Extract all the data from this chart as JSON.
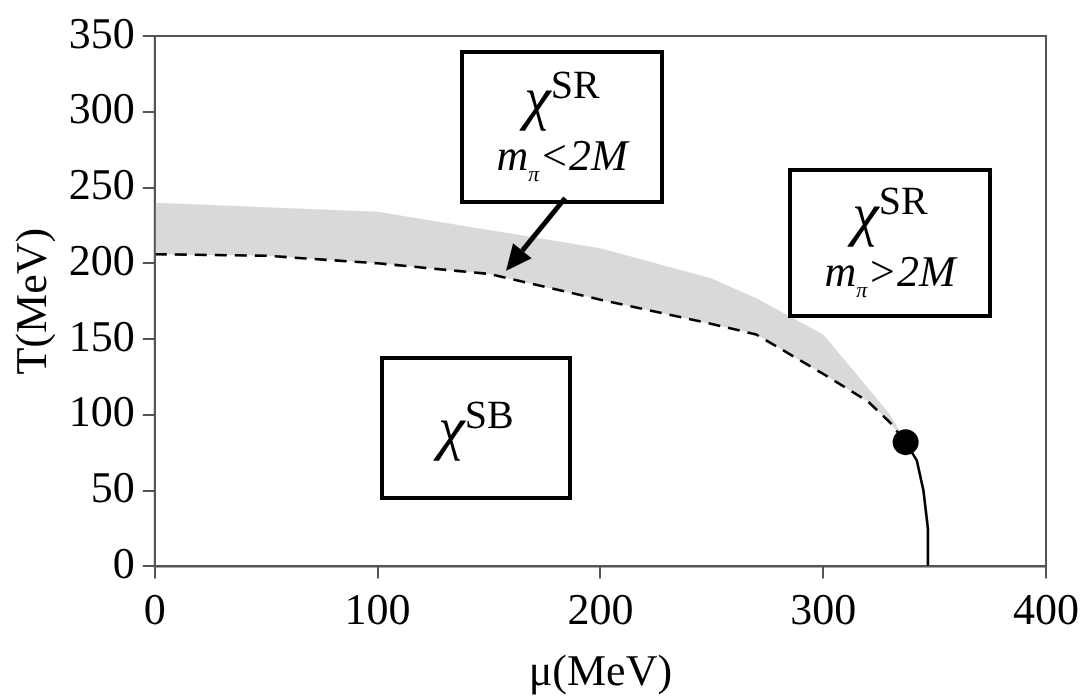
{
  "chart_data": {
    "type": "line",
    "xlabel": "μ(MeV)",
    "ylabel": "T(MeV)",
    "xlim": [
      0,
      400
    ],
    "xticks": [
      0,
      100,
      200,
      300,
      400
    ],
    "ylim": [
      0,
      350
    ],
    "yticks": [
      0,
      50,
      100,
      150,
      200,
      250,
      300,
      350
    ],
    "grid": false,
    "series": [
      {
        "type": "line",
        "color": "#000000",
        "line_style": "dashed",
        "x": [
          0,
          50,
          100,
          150,
          200,
          250,
          270,
          300,
          320,
          330,
          337
        ],
        "values": [
          206,
          205,
          200,
          193,
          176,
          160,
          153,
          127,
          109,
          95,
          82
        ],
        "lower": [
          206,
          205,
          200,
          193,
          176,
          160,
          153,
          127,
          109,
          95,
          82
        ],
        "upper": [
          240,
          237,
          234,
          222,
          210,
          190,
          177,
          153,
          118,
          100,
          82
        ]
      },
      {
        "type": "line",
        "color": "#000000",
        "line_style": "solid",
        "x": [
          337,
          342,
          345,
          347,
          347
        ],
        "values": [
          82,
          70,
          50,
          25,
          0
        ]
      },
      {
        "type": "scatter",
        "color": "#000000",
        "marker": "circle",
        "x": [
          337
        ],
        "values": [
          82
        ]
      }
    ],
    "annotations": [
      {
        "text": "χ$^{SR}$\nm$_{π}$<2M",
        "x": 158,
        "y": 195
      },
      "χ$^{SR}$\nm$_{π}$>2M",
      "χ$^{SB}$"
    ]
  }
}
